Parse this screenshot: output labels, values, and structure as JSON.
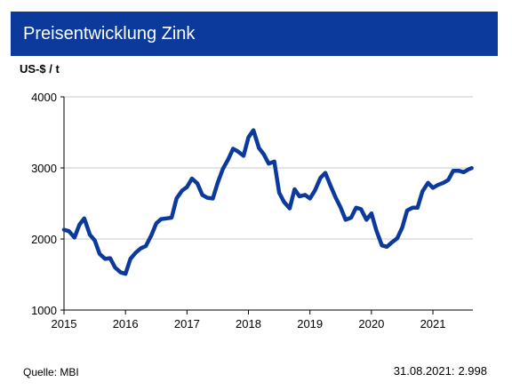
{
  "header": {
    "title": "Preisentwicklung Zink",
    "unit": "US-$ / t"
  },
  "footer": {
    "source": "Quelle: MBI",
    "last_date": "31.08.2021:",
    "last_value": "2.998"
  },
  "colors": {
    "title_bar": "#0b3a9c",
    "line": "#0b3a9c",
    "grid": "#c8c8c8"
  },
  "chart_data": {
    "type": "line",
    "title": "Preisentwicklung Zink",
    "ylabel": "US-$ / t",
    "xlabel": "",
    "xlim": [
      2015.0,
      2021.65
    ],
    "ylim": [
      1000,
      4000
    ],
    "yticks": [
      1000,
      2000,
      3000,
      4000
    ],
    "ytick_labels": [
      "1000",
      "2000",
      "3000",
      "4000"
    ],
    "xticks": [
      2015,
      2016,
      2017,
      2018,
      2019,
      2020,
      2021
    ],
    "xtick_labels": [
      "2015",
      "2016",
      "2017",
      "2018",
      "2019",
      "2020",
      "2021"
    ],
    "grid": "horizontal",
    "series": [
      {
        "x": [
          2015.0,
          2015.08,
          2015.17,
          2015.25,
          2015.33,
          2015.42,
          2015.5,
          2015.58,
          2015.67,
          2015.75,
          2015.83,
          2015.92,
          2016.0,
          2016.08,
          2016.17,
          2016.25,
          2016.33,
          2016.42,
          2016.5,
          2016.58,
          2016.67,
          2016.75,
          2016.83,
          2016.92,
          2017.0,
          2017.08,
          2017.17,
          2017.25,
          2017.33,
          2017.42,
          2017.5,
          2017.58,
          2017.67,
          2017.75,
          2017.83,
          2017.92,
          2018.0,
          2018.08,
          2018.17,
          2018.25,
          2018.33,
          2018.42,
          2018.5,
          2018.58,
          2018.67,
          2018.75,
          2018.83,
          2018.92,
          2019.0,
          2019.08,
          2019.17,
          2019.25,
          2019.33,
          2019.42,
          2019.5,
          2019.58,
          2019.67,
          2019.75,
          2019.83,
          2019.92,
          2020.0,
          2020.08,
          2020.17,
          2020.25,
          2020.33,
          2020.42,
          2020.5,
          2020.58,
          2020.67,
          2020.75,
          2020.83,
          2020.92,
          2021.0,
          2021.08,
          2021.17,
          2021.25,
          2021.33,
          2021.42,
          2021.5,
          2021.58,
          2021.63
        ],
        "y": [
          2130,
          2110,
          2020,
          2200,
          2290,
          2060,
          1980,
          1790,
          1720,
          1730,
          1600,
          1530,
          1510,
          1720,
          1810,
          1870,
          1900,
          2050,
          2220,
          2280,
          2290,
          2300,
          2570,
          2680,
          2730,
          2850,
          2780,
          2620,
          2580,
          2570,
          2790,
          2980,
          3120,
          3270,
          3230,
          3170,
          3430,
          3530,
          3280,
          3190,
          3060,
          3090,
          2650,
          2520,
          2430,
          2700,
          2600,
          2620,
          2570,
          2680,
          2860,
          2930,
          2760,
          2580,
          2440,
          2270,
          2300,
          2440,
          2420,
          2270,
          2360,
          2120,
          1910,
          1890,
          1950,
          2010,
          2160,
          2400,
          2440,
          2440,
          2670,
          2790,
          2720,
          2760,
          2790,
          2830,
          2960,
          2960,
          2940,
          2980,
          2998
        ]
      }
    ]
  }
}
